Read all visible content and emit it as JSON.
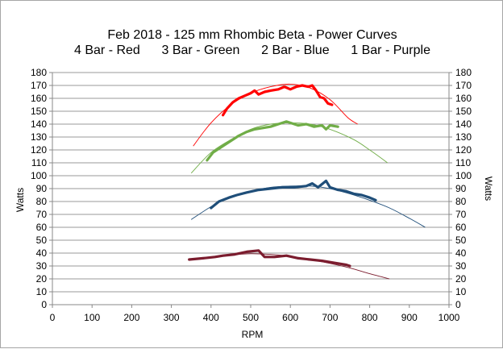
{
  "chart_data": {
    "type": "line",
    "title_lines": [
      "Feb 2018 - 125 mm Rhombic Beta - Power Curves",
      "4 Bar - Red      3 Bar - Green      2 Bar - Blue      1 Bar - Purple"
    ],
    "xlabel": "RPM",
    "ylabel_left": "Watts",
    "ylabel_right": "Watts",
    "xlim": [
      0,
      1000
    ],
    "ylim": [
      0,
      180
    ],
    "x_ticks": [
      0,
      100,
      200,
      300,
      400,
      500,
      600,
      700,
      800,
      900,
      1000
    ],
    "y_ticks": [
      0,
      10,
      20,
      30,
      40,
      50,
      60,
      70,
      80,
      90,
      100,
      110,
      120,
      130,
      140,
      150,
      160,
      170,
      180
    ],
    "grid": "horizontal",
    "legend": "none",
    "series": [
      {
        "name": "4 Bar",
        "color": "#ff0000",
        "points": [
          [
            430,
            147
          ],
          [
            440,
            152
          ],
          [
            455,
            157
          ],
          [
            470,
            160
          ],
          [
            485,
            162
          ],
          [
            500,
            164
          ],
          [
            510,
            166
          ],
          [
            520,
            163
          ],
          [
            535,
            165
          ],
          [
            550,
            166
          ],
          [
            570,
            167
          ],
          [
            585,
            169
          ],
          [
            600,
            167
          ],
          [
            615,
            169
          ],
          [
            630,
            170
          ],
          [
            645,
            169
          ],
          [
            655,
            170
          ],
          [
            665,
            166
          ],
          [
            675,
            161
          ],
          [
            685,
            160
          ],
          [
            695,
            156
          ],
          [
            705,
            155
          ]
        ],
        "trend": [
          [
            355,
            123
          ],
          [
            400,
            141
          ],
          [
            450,
            155
          ],
          [
            500,
            164
          ],
          [
            550,
            169
          ],
          [
            600,
            171
          ],
          [
            650,
            168
          ],
          [
            700,
            159
          ],
          [
            745,
            145
          ],
          [
            770,
            140
          ]
        ]
      },
      {
        "name": "3 Bar",
        "color": "#70ad47",
        "points": [
          [
            390,
            112
          ],
          [
            405,
            118
          ],
          [
            425,
            122
          ],
          [
            450,
            127
          ],
          [
            470,
            131
          ],
          [
            490,
            134
          ],
          [
            510,
            136
          ],
          [
            530,
            137
          ],
          [
            550,
            138
          ],
          [
            570,
            140
          ],
          [
            590,
            142
          ],
          [
            600,
            141
          ],
          [
            620,
            139
          ],
          [
            640,
            140
          ],
          [
            660,
            138
          ],
          [
            680,
            139
          ],
          [
            690,
            136
          ],
          [
            700,
            139
          ],
          [
            720,
            138
          ]
        ],
        "trend": [
          [
            350,
            102
          ],
          [
            400,
            118
          ],
          [
            450,
            128
          ],
          [
            500,
            136
          ],
          [
            550,
            140
          ],
          [
            600,
            141
          ],
          [
            650,
            140
          ],
          [
            700,
            136
          ],
          [
            760,
            128
          ],
          [
            800,
            120
          ],
          [
            845,
            110
          ]
        ]
      },
      {
        "name": "2 Bar",
        "color": "#1f4e79",
        "points": [
          [
            400,
            75
          ],
          [
            420,
            80
          ],
          [
            445,
            83
          ],
          [
            465,
            85
          ],
          [
            490,
            87
          ],
          [
            520,
            89
          ],
          [
            550,
            90
          ],
          [
            580,
            91
          ],
          [
            610,
            91
          ],
          [
            640,
            92
          ],
          [
            655,
            94
          ],
          [
            670,
            91
          ],
          [
            690,
            96
          ],
          [
            700,
            91
          ],
          [
            720,
            89
          ],
          [
            740,
            88
          ],
          [
            760,
            86
          ],
          [
            780,
            85
          ],
          [
            800,
            83
          ],
          [
            815,
            81
          ]
        ],
        "trend": [
          [
            350,
            66
          ],
          [
            400,
            76
          ],
          [
            450,
            84
          ],
          [
            500,
            88
          ],
          [
            550,
            91
          ],
          [
            600,
            92
          ],
          [
            650,
            92
          ],
          [
            700,
            90
          ],
          [
            750,
            86
          ],
          [
            800,
            81
          ],
          [
            850,
            75
          ],
          [
            900,
            67
          ],
          [
            940,
            60
          ]
        ]
      },
      {
        "name": "1 Bar",
        "color": "#7b1c2e",
        "points": [
          [
            345,
            35
          ],
          [
            380,
            36
          ],
          [
            410,
            37
          ],
          [
            430,
            38
          ],
          [
            460,
            39
          ],
          [
            490,
            41
          ],
          [
            520,
            42
          ],
          [
            535,
            37
          ],
          [
            560,
            37
          ],
          [
            590,
            38
          ],
          [
            620,
            36
          ],
          [
            650,
            35
          ],
          [
            680,
            34
          ],
          [
            700,
            33
          ],
          [
            740,
            31
          ],
          [
            750,
            30
          ]
        ],
        "trend": [
          [
            350,
            35
          ],
          [
            400,
            37
          ],
          [
            450,
            38.5
          ],
          [
            500,
            39.5
          ],
          [
            550,
            39
          ],
          [
            600,
            37.5
          ],
          [
            650,
            35
          ],
          [
            700,
            32
          ],
          [
            750,
            28.5
          ],
          [
            800,
            24
          ],
          [
            850,
            20
          ]
        ]
      }
    ]
  }
}
